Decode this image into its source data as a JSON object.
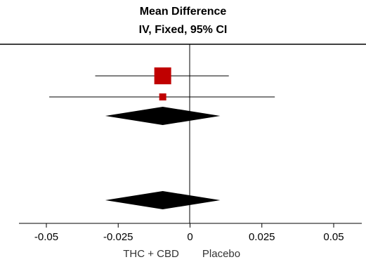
{
  "chart_data": {
    "type": "forest",
    "title": "Mean Difference",
    "subtitle": "IV, Fixed, 95% CI",
    "xlim": [
      -0.05,
      0.05
    ],
    "xticks": [
      -0.05,
      -0.025,
      0,
      0.025,
      0.05
    ],
    "xtick_labels": [
      "-0.05",
      "-0.025",
      "0",
      "0.025",
      "0.05"
    ],
    "favours_left": "THC + CBD",
    "favours_right": "Placebo",
    "studies": [
      {
        "estimate": -0.0095,
        "ci_low": -0.033,
        "ci_high": 0.0135,
        "weight": "large"
      },
      {
        "estimate": -0.0095,
        "ci_low": -0.049,
        "ci_high": 0.0295,
        "weight": "small"
      }
    ],
    "pooled": [
      {
        "estimate": -0.0095,
        "ci_low": -0.0295,
        "ci_high": 0.0105
      },
      {
        "estimate": -0.0095,
        "ci_low": -0.0295,
        "ci_high": 0.0105
      }
    ],
    "colors": {
      "study_marker": "#c00000",
      "pooled": "#000000",
      "axis": "#000000"
    }
  }
}
